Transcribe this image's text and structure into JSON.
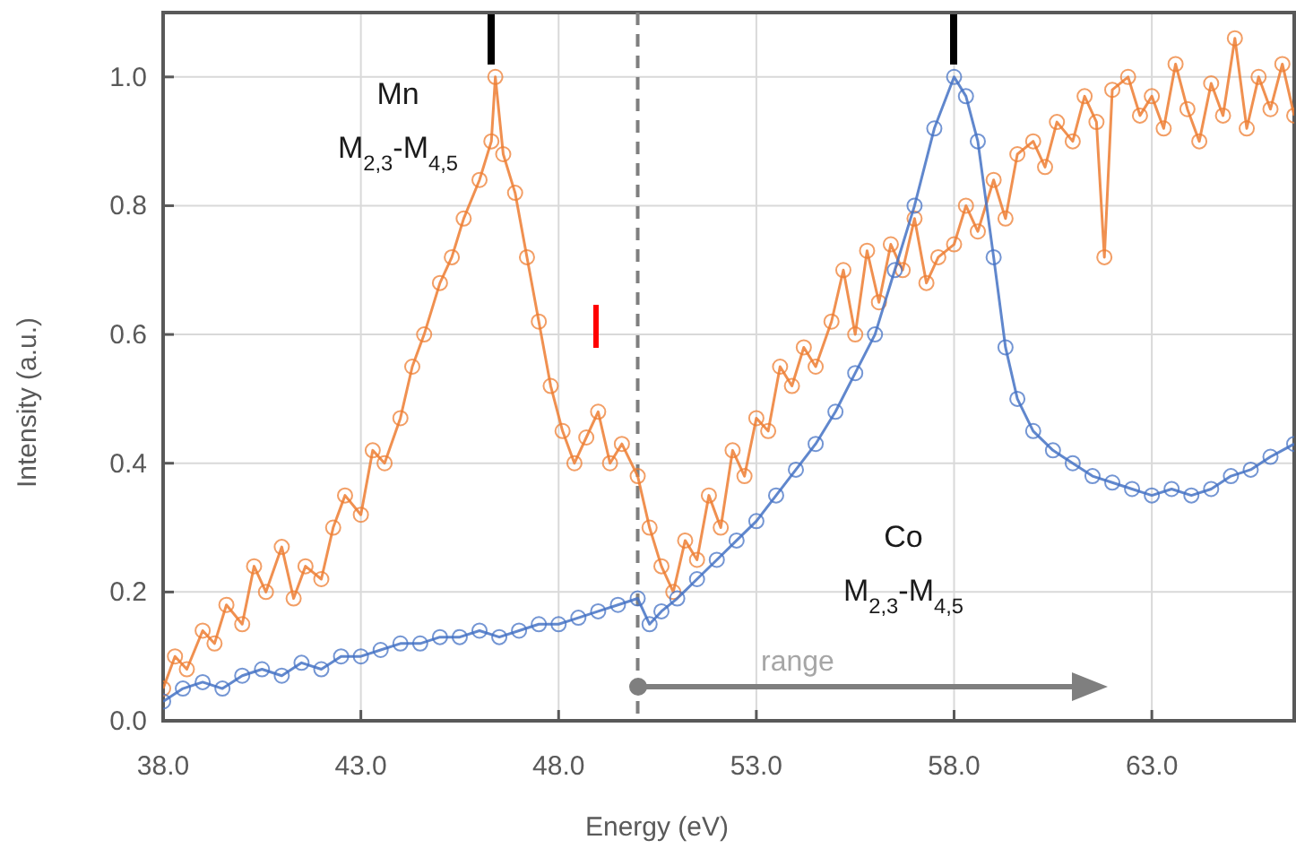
{
  "chart_data": {
    "type": "line",
    "xlabel": "Energy (eV)",
    "ylabel": "Intensity (a.u.)",
    "xlim": [
      38.0,
      66.6
    ],
    "xticks": [
      {
        "value": 38,
        "label": "38.0"
      },
      {
        "value": 43,
        "label": "43.0"
      },
      {
        "value": 48,
        "label": "48.0"
      },
      {
        "value": 53,
        "label": "53.0"
      },
      {
        "value": 58,
        "label": "58.0"
      },
      {
        "value": 63,
        "label": "63.0"
      }
    ],
    "ylim": [
      0,
      1.1
    ],
    "yticks": [
      {
        "value": 0,
        "label": "0.0"
      },
      {
        "value": 0.2,
        "label": "0.2"
      },
      {
        "value": 0.4,
        "label": "0.4"
      },
      {
        "value": 0.6,
        "label": "0.6"
      },
      {
        "value": 0.8,
        "label": "0.8"
      },
      {
        "value": 1.0,
        "label": "1.0"
      }
    ],
    "grid": true,
    "marker": "circle",
    "line_style": "solid",
    "series": [
      {
        "color": "#ed7d31",
        "x": [
          38.0,
          38.3,
          38.6,
          39.0,
          39.3,
          39.6,
          40.0,
          40.3,
          40.6,
          41.0,
          41.3,
          41.6,
          42.0,
          42.3,
          42.6,
          43.0,
          43.3,
          43.6,
          44.0,
          44.3,
          44.6,
          45.0,
          45.3,
          45.6,
          46.0,
          46.3,
          46.4,
          46.6,
          46.9,
          47.2,
          47.5,
          47.8,
          48.1,
          48.4,
          48.7,
          49.0,
          49.3,
          49.6,
          50.0,
          50.3,
          50.6,
          50.9,
          51.2,
          51.5,
          51.8,
          52.1,
          52.4,
          52.7,
          53.0,
          53.3,
          53.6,
          53.9,
          54.2,
          54.5,
          54.9,
          55.2,
          55.5,
          55.8,
          56.1,
          56.4,
          56.7,
          57.0,
          57.3,
          57.6,
          58.0,
          58.3,
          58.6,
          59.0,
          59.3,
          59.6,
          60.0,
          60.3,
          60.6,
          61.0,
          61.3,
          61.6,
          61.8,
          62.0,
          62.4,
          62.7,
          63.0,
          63.3,
          63.6,
          63.9,
          64.2,
          64.5,
          64.8,
          65.1,
          65.4,
          65.7,
          66.0,
          66.3,
          66.6
        ],
        "values": [
          0.05,
          0.1,
          0.08,
          0.14,
          0.12,
          0.18,
          0.15,
          0.24,
          0.2,
          0.27,
          0.19,
          0.24,
          0.22,
          0.3,
          0.35,
          0.32,
          0.42,
          0.4,
          0.47,
          0.55,
          0.6,
          0.68,
          0.72,
          0.78,
          0.84,
          0.9,
          1.0,
          0.88,
          0.82,
          0.72,
          0.62,
          0.52,
          0.45,
          0.4,
          0.44,
          0.48,
          0.4,
          0.43,
          0.38,
          0.3,
          0.24,
          0.2,
          0.28,
          0.25,
          0.35,
          0.3,
          0.42,
          0.38,
          0.47,
          0.45,
          0.55,
          0.52,
          0.58,
          0.55,
          0.62,
          0.7,
          0.6,
          0.73,
          0.65,
          0.74,
          0.7,
          0.78,
          0.68,
          0.72,
          0.74,
          0.8,
          0.76,
          0.84,
          0.78,
          0.88,
          0.9,
          0.86,
          0.93,
          0.9,
          0.97,
          0.93,
          0.72,
          0.98,
          1.0,
          0.94,
          0.97,
          0.92,
          1.02,
          0.95,
          0.9,
          0.99,
          0.94,
          1.06,
          0.92,
          1.0,
          0.95,
          1.02,
          0.94
        ]
      },
      {
        "color": "#4472c4",
        "x": [
          38.0,
          38.5,
          39.0,
          39.5,
          40.0,
          40.5,
          41.0,
          41.5,
          42.0,
          42.5,
          43.0,
          43.5,
          44.0,
          44.5,
          45.0,
          45.5,
          46.0,
          46.5,
          47.0,
          47.5,
          48.0,
          48.5,
          49.0,
          49.5,
          50.0,
          50.3,
          50.6,
          51.0,
          51.5,
          52.0,
          52.5,
          53.0,
          53.5,
          54.0,
          54.5,
          55.0,
          55.5,
          56.0,
          56.5,
          57.0,
          57.5,
          58.0,
          58.3,
          58.6,
          59.0,
          59.3,
          59.6,
          60.0,
          60.5,
          61.0,
          61.5,
          62.0,
          62.5,
          63.0,
          63.5,
          64.0,
          64.5,
          65.0,
          65.5,
          66.0,
          66.6
        ],
        "values": [
          0.03,
          0.05,
          0.06,
          0.05,
          0.07,
          0.08,
          0.07,
          0.09,
          0.08,
          0.1,
          0.1,
          0.11,
          0.12,
          0.12,
          0.13,
          0.13,
          0.14,
          0.13,
          0.14,
          0.15,
          0.15,
          0.16,
          0.17,
          0.18,
          0.19,
          0.15,
          0.17,
          0.19,
          0.22,
          0.25,
          0.28,
          0.31,
          0.35,
          0.39,
          0.43,
          0.48,
          0.54,
          0.6,
          0.7,
          0.8,
          0.92,
          1.0,
          0.97,
          0.9,
          0.72,
          0.58,
          0.5,
          0.45,
          0.42,
          0.4,
          0.38,
          0.37,
          0.36,
          0.35,
          0.36,
          0.35,
          0.36,
          0.38,
          0.39,
          0.41,
          0.43
        ]
      }
    ],
    "ref_lines": [
      {
        "axis": "x",
        "value": 50.0,
        "color": "#7f7f7f",
        "line_style": "dashed"
      }
    ],
    "annotations": [
      "Mn",
      "M$_{2,3}$-M$_{4,5}$",
      "Co",
      "M$_{2,3}$-M$_{4,5}$",
      "range"
    ]
  }
}
